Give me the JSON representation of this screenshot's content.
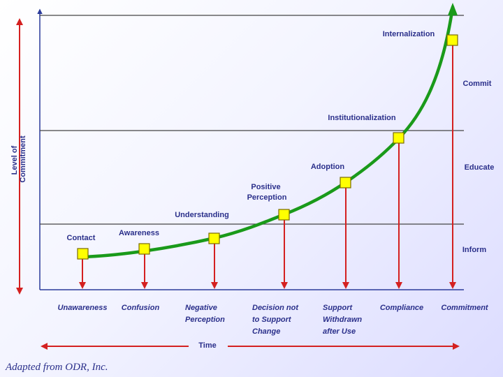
{
  "diagram": {
    "y_axis_label": [
      "Level of",
      "Commitment"
    ],
    "x_axis_label": "Time",
    "phases": [
      {
        "id": "commit",
        "label": "Commit"
      },
      {
        "id": "educate",
        "label": "Educate"
      },
      {
        "id": "inform",
        "label": "Inform"
      }
    ],
    "stages": [
      {
        "id": "contact",
        "label": [
          "Contact"
        ],
        "outcome": [
          "Unawareness"
        ]
      },
      {
        "id": "awareness",
        "label": [
          "Awareness"
        ],
        "outcome": [
          "Confusion"
        ]
      },
      {
        "id": "understanding",
        "label": [
          "Understanding"
        ],
        "outcome": [
          "Negative",
          "Perception"
        ]
      },
      {
        "id": "positive-perception",
        "label": [
          "Positive",
          "Perception"
        ],
        "outcome": [
          "Decision not",
          "to Support",
          "Change"
        ]
      },
      {
        "id": "adoption",
        "label": [
          "Adoption"
        ],
        "outcome": [
          "Support",
          "Withdrawn",
          "after Use"
        ]
      },
      {
        "id": "institutionalization",
        "label": [
          "Institutionalization"
        ],
        "outcome": [
          "Compliance"
        ]
      },
      {
        "id": "internalization",
        "label": [
          "Internalization"
        ],
        "outcome": [
          "Commitment"
        ]
      }
    ],
    "colors": {
      "curve": "#1a9a1a",
      "marker_fill": "#ffff00",
      "marker_stroke": "#7a6a00",
      "arrow": "#d42020",
      "axis": "#2a3a9a",
      "text": "#2a2f8a",
      "band_line": "#444444"
    }
  },
  "credit": "Adapted from ODR, Inc."
}
